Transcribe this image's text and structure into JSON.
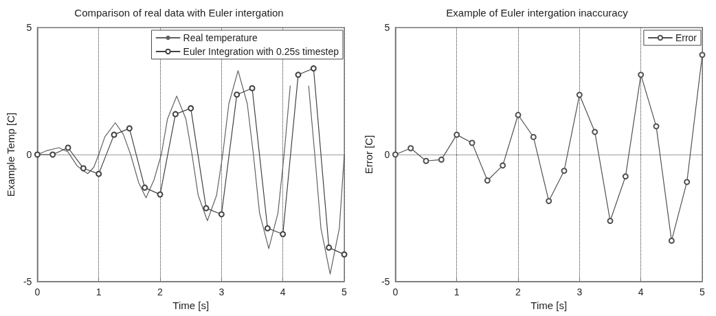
{
  "chart_data": [
    {
      "type": "line",
      "title": "Comparison of real data with Euler intergation",
      "xlabel": "Time [s]",
      "ylabel": "Example Temp [C]",
      "xlim": [
        0,
        5
      ],
      "xticks": [
        0,
        1,
        2,
        3,
        4,
        5
      ],
      "ylim": [
        -5,
        5
      ],
      "yticks": [
        -5,
        0,
        5
      ],
      "grid": true,
      "legend": "top right",
      "line_style": "solid",
      "series": [
        {
          "name": "Real temperature",
          "color": "#606060",
          "marker": "none",
          "x": [
            0,
            0.15,
            0.35,
            0.5,
            0.65,
            0.82,
            0.92,
            1.0,
            1.1,
            1.27,
            1.4,
            1.52,
            1.65,
            1.77,
            1.9,
            2.02,
            2.12,
            2.27,
            2.42,
            2.52,
            2.62,
            2.77,
            2.92,
            3.02,
            3.12,
            3.27,
            3.42,
            3.52,
            3.62,
            3.77,
            3.92,
            4.02,
            4.12,
            4.27,
            4.42,
            4.52,
            4.62,
            4.77,
            4.92,
            5
          ],
          "values": [
            0,
            0.15,
            0.27,
            0.1,
            -0.45,
            -0.75,
            -0.5,
            0,
            0.7,
            1.25,
            0.8,
            0,
            -1.1,
            -1.7,
            -1.0,
            0,
            1.4,
            2.3,
            1.4,
            0,
            -1.6,
            -2.6,
            -1.6,
            0,
            2.0,
            3.3,
            2.0,
            0,
            -2.3,
            -3.7,
            -2.3,
            0,
            2.7,
            null,
            2.7,
            0,
            -2.9,
            -4.7,
            -2.9,
            0
          ]
        },
        {
          "name": "Euler Integration with 0.25s timestep",
          "color": "#404040",
          "marker": "circle",
          "x": [
            0,
            0.25,
            0.5,
            0.75,
            1,
            1.25,
            1.5,
            1.75,
            2,
            2.25,
            2.5,
            2.75,
            3,
            3.25,
            3.5,
            3.75,
            4,
            4.25,
            4.5,
            4.75,
            5
          ],
          "values": [
            0,
            0,
            0.27,
            -0.54,
            -0.76,
            0.78,
            1.03,
            -1.3,
            -1.57,
            1.59,
            1.82,
            -2.11,
            -2.35,
            2.36,
            2.61,
            -2.9,
            -3.13,
            3.14,
            3.39,
            -3.66,
            -3.93
          ]
        }
      ]
    },
    {
      "type": "line",
      "title": "Example of Euler intergation inaccuracy",
      "xlabel": "Time [s]",
      "ylabel": "Error [C]",
      "xlim": [
        0,
        5
      ],
      "xticks": [
        0,
        1,
        2,
        3,
        4,
        5
      ],
      "ylim": [
        -5,
        5
      ],
      "yticks": [
        -5,
        0,
        5
      ],
      "grid": true,
      "legend": "top right",
      "line_style": "solid",
      "series": [
        {
          "name": "Error",
          "color": "#505050",
          "marker": "circle",
          "x": [
            0,
            0.25,
            0.5,
            0.75,
            1,
            1.25,
            1.5,
            1.75,
            2,
            2.25,
            2.5,
            2.75,
            3,
            3.25,
            3.5,
            3.75,
            4,
            4.25,
            4.5,
            4.75,
            5
          ],
          "values": [
            0,
            0.25,
            -0.25,
            -0.2,
            0.78,
            0.46,
            -1.02,
            -0.43,
            1.56,
            0.69,
            -1.83,
            -0.64,
            2.35,
            0.89,
            -2.61,
            -0.86,
            3.14,
            1.11,
            -3.39,
            -1.08,
            3.92
          ]
        }
      ]
    }
  ]
}
